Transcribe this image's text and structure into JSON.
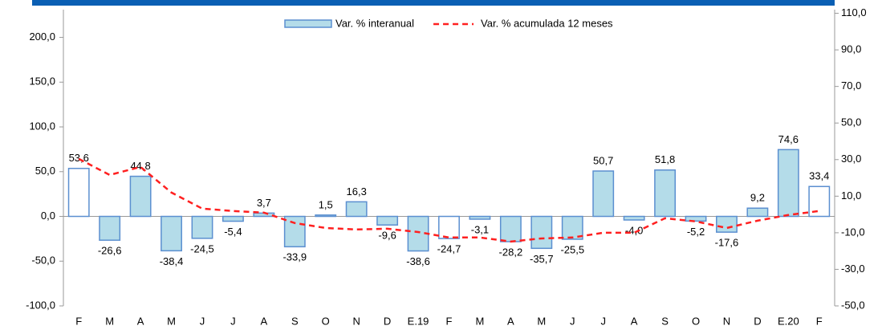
{
  "chart_data": {
    "type": "bar",
    "categories": [
      "F",
      "M",
      "A",
      "M",
      "J",
      "J",
      "A",
      "S",
      "O",
      "N",
      "D",
      "E.19",
      "F",
      "M",
      "A",
      "M",
      "J",
      "J",
      "A",
      "S",
      "O",
      "N",
      "D",
      "E.20",
      "F"
    ],
    "series": [
      {
        "name": "Var. % interanual",
        "type": "bar",
        "axis": "y",
        "color": "#b4dce9",
        "stroke": "#5b8fd0",
        "colors": [
          "#ffffff",
          "#b4dce9",
          "#b4dce9",
          "#b4dce9",
          "#b4dce9",
          "#b4dce9",
          "#b4dce9",
          "#b4dce9",
          "#b4dce9",
          "#b4dce9",
          "#b4dce9",
          "#b4dce9",
          "#ffffff",
          "#b4dce9",
          "#b4dce9",
          "#b4dce9",
          "#b4dce9",
          "#b4dce9",
          "#b4dce9",
          "#b4dce9",
          "#b4dce9",
          "#b4dce9",
          "#b4dce9",
          "#b4dce9",
          "#ffffff"
        ],
        "values": [
          53.6,
          -26.6,
          44.8,
          -38.4,
          -24.5,
          -5.4,
          3.7,
          -33.9,
          1.5,
          16.3,
          -9.6,
          -38.6,
          -24.7,
          -3.1,
          -28.2,
          -35.7,
          -25.5,
          50.7,
          -4.0,
          51.8,
          -5.2,
          -17.6,
          9.2,
          74.6,
          33.4
        ],
        "value_labels": [
          "53,6",
          "-26,6",
          "44,8",
          "-38,4",
          "-24,5",
          "-5,4",
          "3,7",
          "-33,9",
          "1,5",
          "16,3",
          "-9,6",
          "-38,6",
          "-24,7",
          "-3,1",
          "-28,2",
          "-35,7",
          "-25,5",
          "50,7",
          "-4,0",
          "51,8",
          "-5,2",
          "-17,6",
          "9,2",
          "74,6",
          "33,4"
        ]
      },
      {
        "name": "Var. % acumulada 12 meses",
        "type": "line",
        "axis": "y2",
        "color": "#ff2020",
        "dashed": true,
        "values": [
          30.4,
          21.6,
          26,
          12,
          3.2,
          1.9,
          1,
          -4.7,
          -7.4,
          -8.2,
          -7.8,
          -9.6,
          -12.6,
          -12.6,
          -14.8,
          -13.1,
          -12.6,
          -10,
          -10,
          -2.1,
          -3.8,
          -7.4,
          -3.4,
          -0.3,
          1.9
        ]
      }
    ],
    "ylim": [
      -100,
      231
    ],
    "yticks": [
      {
        "value": -100,
        "label": "-100,0"
      },
      {
        "value": -50,
        "label": "-50,0"
      },
      {
        "value": 0,
        "label": "0,0"
      },
      {
        "value": 50,
        "label": "50,0"
      },
      {
        "value": 100,
        "label": "100,0"
      },
      {
        "value": 150,
        "label": "150,0"
      },
      {
        "value": 200,
        "label": "200,0"
      }
    ],
    "y2lim": [
      -50,
      112
    ],
    "y2ticks": [
      {
        "value": -50,
        "label": "-50,0"
      },
      {
        "value": -30,
        "label": "-30,0"
      },
      {
        "value": -10,
        "label": "-10,0"
      },
      {
        "value": 10,
        "label": "10,0"
      },
      {
        "value": 30,
        "label": "30,0"
      },
      {
        "value": 50,
        "label": "50,0"
      },
      {
        "value": 70,
        "label": "70,0"
      },
      {
        "value": 90,
        "label": "90,0"
      },
      {
        "value": 110,
        "label": "110,0"
      }
    ]
  }
}
